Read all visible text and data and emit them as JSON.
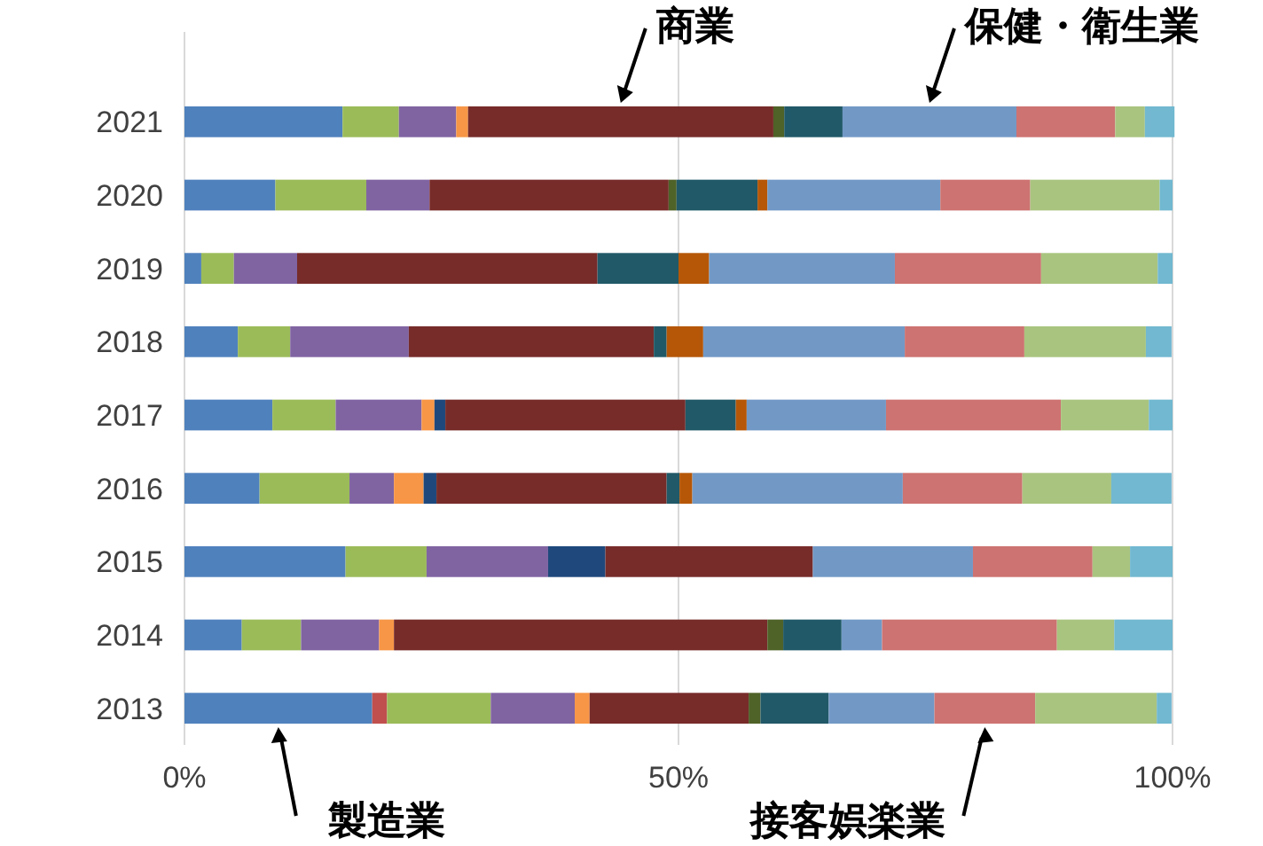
{
  "chart_data": {
    "type": "bar",
    "orientation": "horizontal",
    "stacked": true,
    "categories": [
      "2021",
      "2020",
      "2019",
      "2018",
      "2017",
      "2016",
      "2015",
      "2014",
      "2013"
    ],
    "series": [
      {
        "name": "製造業",
        "color": "#4f81bd",
        "values": [
          16.0,
          9.2,
          1.7,
          5.4,
          8.9,
          7.6,
          16.3,
          5.8,
          19.0
        ]
      },
      {
        "color": "#c0504d",
        "values": [
          0,
          0,
          0,
          0,
          0,
          0,
          0,
          0,
          1.5
        ]
      },
      {
        "color": "#9bbb59",
        "values": [
          5.7,
          9.2,
          3.3,
          5.3,
          6.4,
          9.1,
          8.2,
          6.0,
          10.5
        ]
      },
      {
        "color": "#8064a2",
        "values": [
          5.8,
          6.4,
          6.4,
          12.0,
          8.7,
          4.5,
          12.3,
          7.9,
          8.5
        ]
      },
      {
        "color": "#f79646",
        "values": [
          1.2,
          0,
          0,
          0,
          1.3,
          3.0,
          0,
          1.5,
          1.5
        ]
      },
      {
        "color": "#1f497d",
        "values": [
          0,
          0,
          0,
          0,
          1.1,
          1.3,
          5.8,
          0,
          0
        ]
      },
      {
        "name": "商業",
        "color": "#772c2a",
        "values": [
          30.9,
          24.2,
          30.4,
          24.8,
          24.3,
          23.3,
          21.0,
          37.8,
          16.1
        ]
      },
      {
        "color": "#4f6228",
        "values": [
          1.1,
          0.8,
          0,
          0,
          0,
          0,
          0,
          1.6,
          1.2
        ]
      },
      {
        "color": "#215968",
        "values": [
          5.9,
          8.2,
          8.2,
          1.3,
          5.1,
          1.3,
          0,
          5.9,
          6.9
        ]
      },
      {
        "color": "#b65708",
        "values": [
          0,
          1.0,
          3.1,
          3.7,
          1.1,
          1.3,
          0,
          0,
          0
        ]
      },
      {
        "name": "保健・衛生業",
        "color": "#7299c6",
        "values": [
          17.6,
          17.5,
          18.8,
          20.4,
          14.1,
          21.3,
          16.2,
          4.1,
          10.7
        ]
      },
      {
        "name": "接客娯楽業",
        "color": "#cd7371",
        "values": [
          10.0,
          9.1,
          14.8,
          12.1,
          17.7,
          12.1,
          12.1,
          17.7,
          10.2
        ]
      },
      {
        "color": "#a9c47f",
        "values": [
          3.0,
          13.1,
          11.8,
          12.3,
          8.9,
          9.0,
          3.8,
          5.8,
          12.3
        ]
      },
      {
        "color": "#71b8d0",
        "values": [
          3.0,
          1.3,
          1.5,
          2.6,
          2.4,
          6.1,
          4.3,
          5.9,
          1.5
        ]
      }
    ],
    "xlim": [
      0,
      100
    ],
    "xticks": [
      {
        "value": 0,
        "label": "0%"
      },
      {
        "value": 50,
        "label": "50%"
      },
      {
        "value": 100,
        "label": "100%"
      }
    ],
    "grid": "x"
  }
}
